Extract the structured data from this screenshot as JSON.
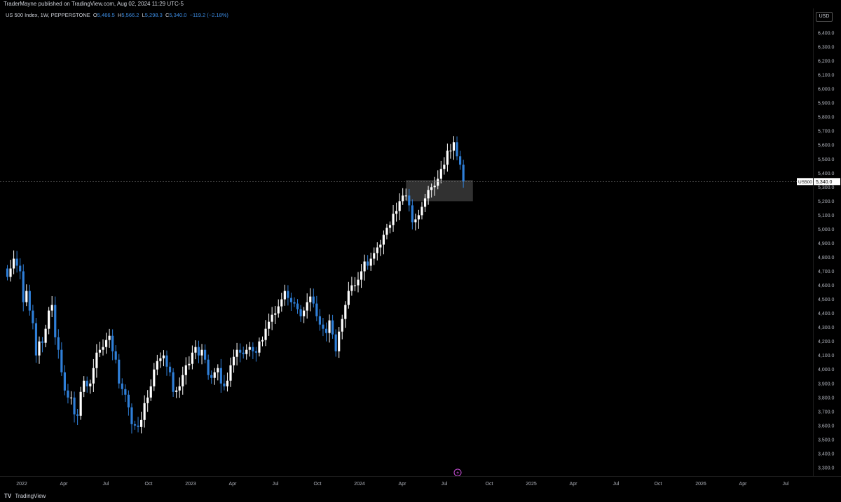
{
  "header": {
    "publisher_text": "TraderMayne published on TradingView.com, Aug 02, 2024 11:29 UTC-5"
  },
  "legend": {
    "symbol_text": "US 500 Index, 1W, PEPPERSTONE",
    "open_label": "O",
    "open_value": "5,466.5",
    "high_label": "H",
    "high_value": "5,566.2",
    "low_label": "L",
    "low_value": "5,298.3",
    "close_label": "C",
    "close_value": "5,340.0",
    "change_text": "−119.2 (−2.18%)"
  },
  "price_axis": {
    "currency_button": "USD",
    "symbol_tag": "US500",
    "last_price_tag": "5,340.0",
    "tick_labels": [
      "6,400.0",
      "6,300.0",
      "6,200.0",
      "6,100.0",
      "6,000.0",
      "5,900.0",
      "5,800.0",
      "5,700.0",
      "5,600.0",
      "5,500.0",
      "5,400.0",
      "5,300.0",
      "5,200.0",
      "5,100.0",
      "5,000.0",
      "4,900.0",
      "4,800.0",
      "4,700.0",
      "4,600.0",
      "4,500.0",
      "4,400.0",
      "4,300.0",
      "4,200.0",
      "4,100.0",
      "4,000.0",
      "3,900.0",
      "3,800.0",
      "3,700.0",
      "3,600.0",
      "3,500.0",
      "3,400.0",
      "3,300.0"
    ]
  },
  "time_axis": {
    "labels": [
      "2022",
      "Apr",
      "Jul",
      "Oct",
      "2023",
      "Apr",
      "Jul",
      "Oct",
      "2024",
      "Apr",
      "Jul",
      "Oct",
      "2025",
      "Apr",
      "Jul",
      "Oct",
      "2026",
      "Apr",
      "Jul"
    ]
  },
  "footer": {
    "logo_text": "TV",
    "brand_text": "TradingView"
  },
  "colors": {
    "background": "#000000",
    "up_candle": "#ffffff",
    "down_candle": "#2f7fd8",
    "zone_fill": "#3a3a3a",
    "legend_value": "#3d8ee6",
    "pulse_icon": "#c84fd8"
  },
  "chart_data": {
    "type": "candlestick",
    "title": "US 500 Index, 1W, PEPPERSTONE",
    "x_start": "2022-01-03",
    "x_interval": "1W",
    "ylim": [
      3250,
      6450
    ],
    "last_price": 5340.0,
    "zone": {
      "from": "2024-05-27",
      "to": "2024-10-21",
      "low": 5200,
      "high": 5350
    },
    "closes": [
      4660,
      4720,
      4790,
      4740,
      4700,
      4480,
      4560,
      4420,
      4330,
      4100,
      4200,
      4190,
      4290,
      4420,
      4460,
      4230,
      4140,
      3980,
      3850,
      3800,
      3800,
      3680,
      3670,
      3840,
      3920,
      3880,
      3900,
      4010,
      4120,
      4140,
      4160,
      4210,
      4240,
      4130,
      4070,
      3900,
      3860,
      3820,
      3730,
      3610,
      3600,
      3590,
      3640,
      3760,
      3800,
      3880,
      4000,
      4060,
      4080,
      4100,
      4020,
      3980,
      3840,
      3850,
      3880,
      3960,
      4030,
      4040,
      4120,
      4160,
      4100,
      4140,
      4070,
      3960,
      3940,
      3980,
      4010,
      3900,
      3880,
      3920,
      4030,
      4090,
      4140,
      4120,
      4110,
      4140,
      4160,
      4130,
      4120,
      4200,
      4210,
      4290,
      4340,
      4390,
      4400,
      4450,
      4500,
      4560,
      4510,
      4480,
      4470,
      4430,
      4380,
      4420,
      4480,
      4520,
      4470,
      4380,
      4320,
      4290,
      4260,
      4350,
      4250,
      4130,
      4270,
      4360,
      4460,
      4560,
      4600,
      4600,
      4640,
      4700,
      4770,
      4740,
      4790,
      4830,
      4870,
      4890,
      4960,
      5010,
      5030,
      5110,
      5130,
      5200,
      5240,
      5240,
      5170,
      5050,
      5070,
      5100,
      5160,
      5220,
      5280,
      5300,
      5310,
      5360,
      5430,
      5460,
      5560,
      5560,
      5620,
      5520,
      5460,
      5340
    ]
  }
}
